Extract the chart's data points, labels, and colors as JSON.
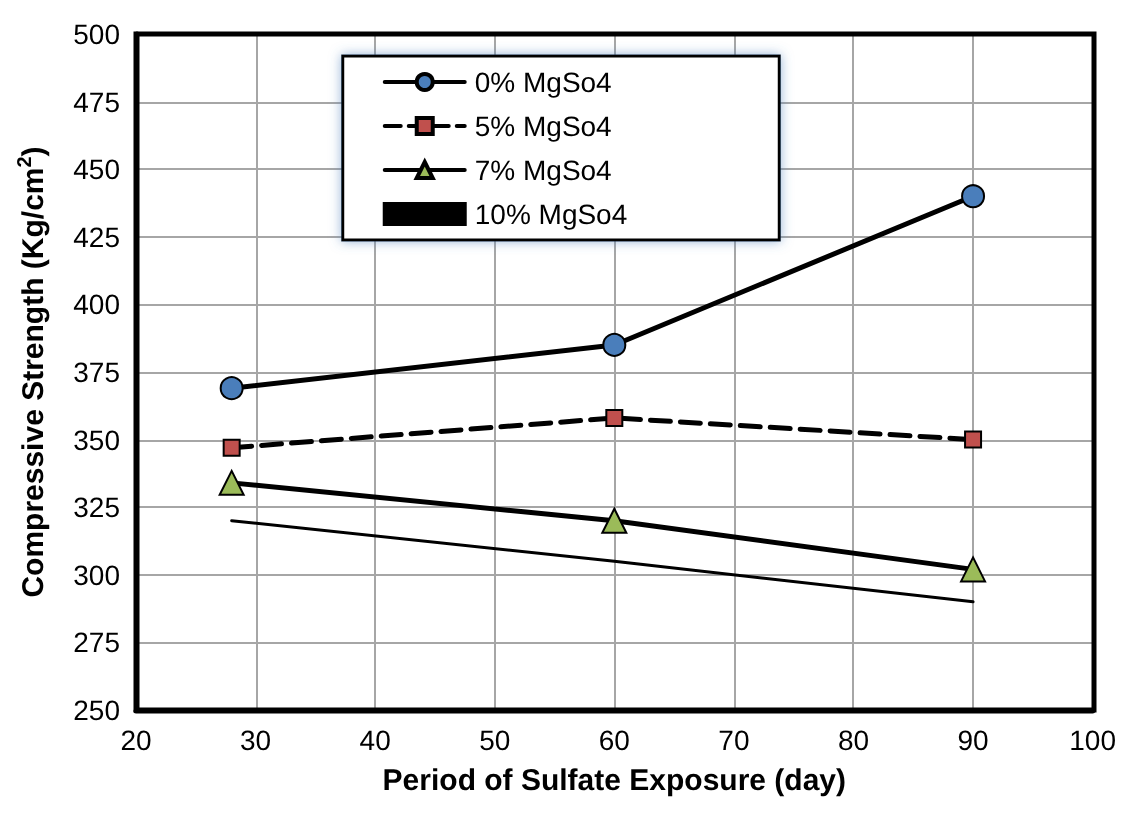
{
  "chart_data": {
    "type": "line",
    "xlabel": "Period of Sulfate Exposure (day)",
    "ylabel": "Compressive Strength (Kg/cm$^{2}$)",
    "x": [
      28,
      60,
      90
    ],
    "series": [
      {
        "name": "0% MgSo4",
        "color": "#4a7ebb",
        "marker": "circle",
        "line_style": "solid",
        "values": [
          369,
          385,
          440
        ]
      },
      {
        "name": "5% MgSo4",
        "color": "#c0504d",
        "marker": "square",
        "line_style": "dashed",
        "values": [
          347,
          358,
          350
        ]
      },
      {
        "name": "7% MgSo4",
        "color": "#9bbb59",
        "marker": "triangle",
        "line_style": "solid",
        "values": [
          334,
          320,
          302
        ]
      },
      {
        "name": "10% MgSo4",
        "color": "#000000",
        "marker": "none",
        "line_style": "solid",
        "values": [
          320,
          305,
          290
        ]
      }
    ],
    "xlim": [
      20,
      100
    ],
    "xticks": [
      20,
      30,
      40,
      50,
      60,
      70,
      80,
      90,
      100
    ],
    "ylim": [
      250,
      500
    ],
    "yticks": [
      250,
      275,
      300,
      325,
      350,
      375,
      400,
      425,
      450,
      475,
      500
    ],
    "grid": true,
    "legend": "top"
  }
}
